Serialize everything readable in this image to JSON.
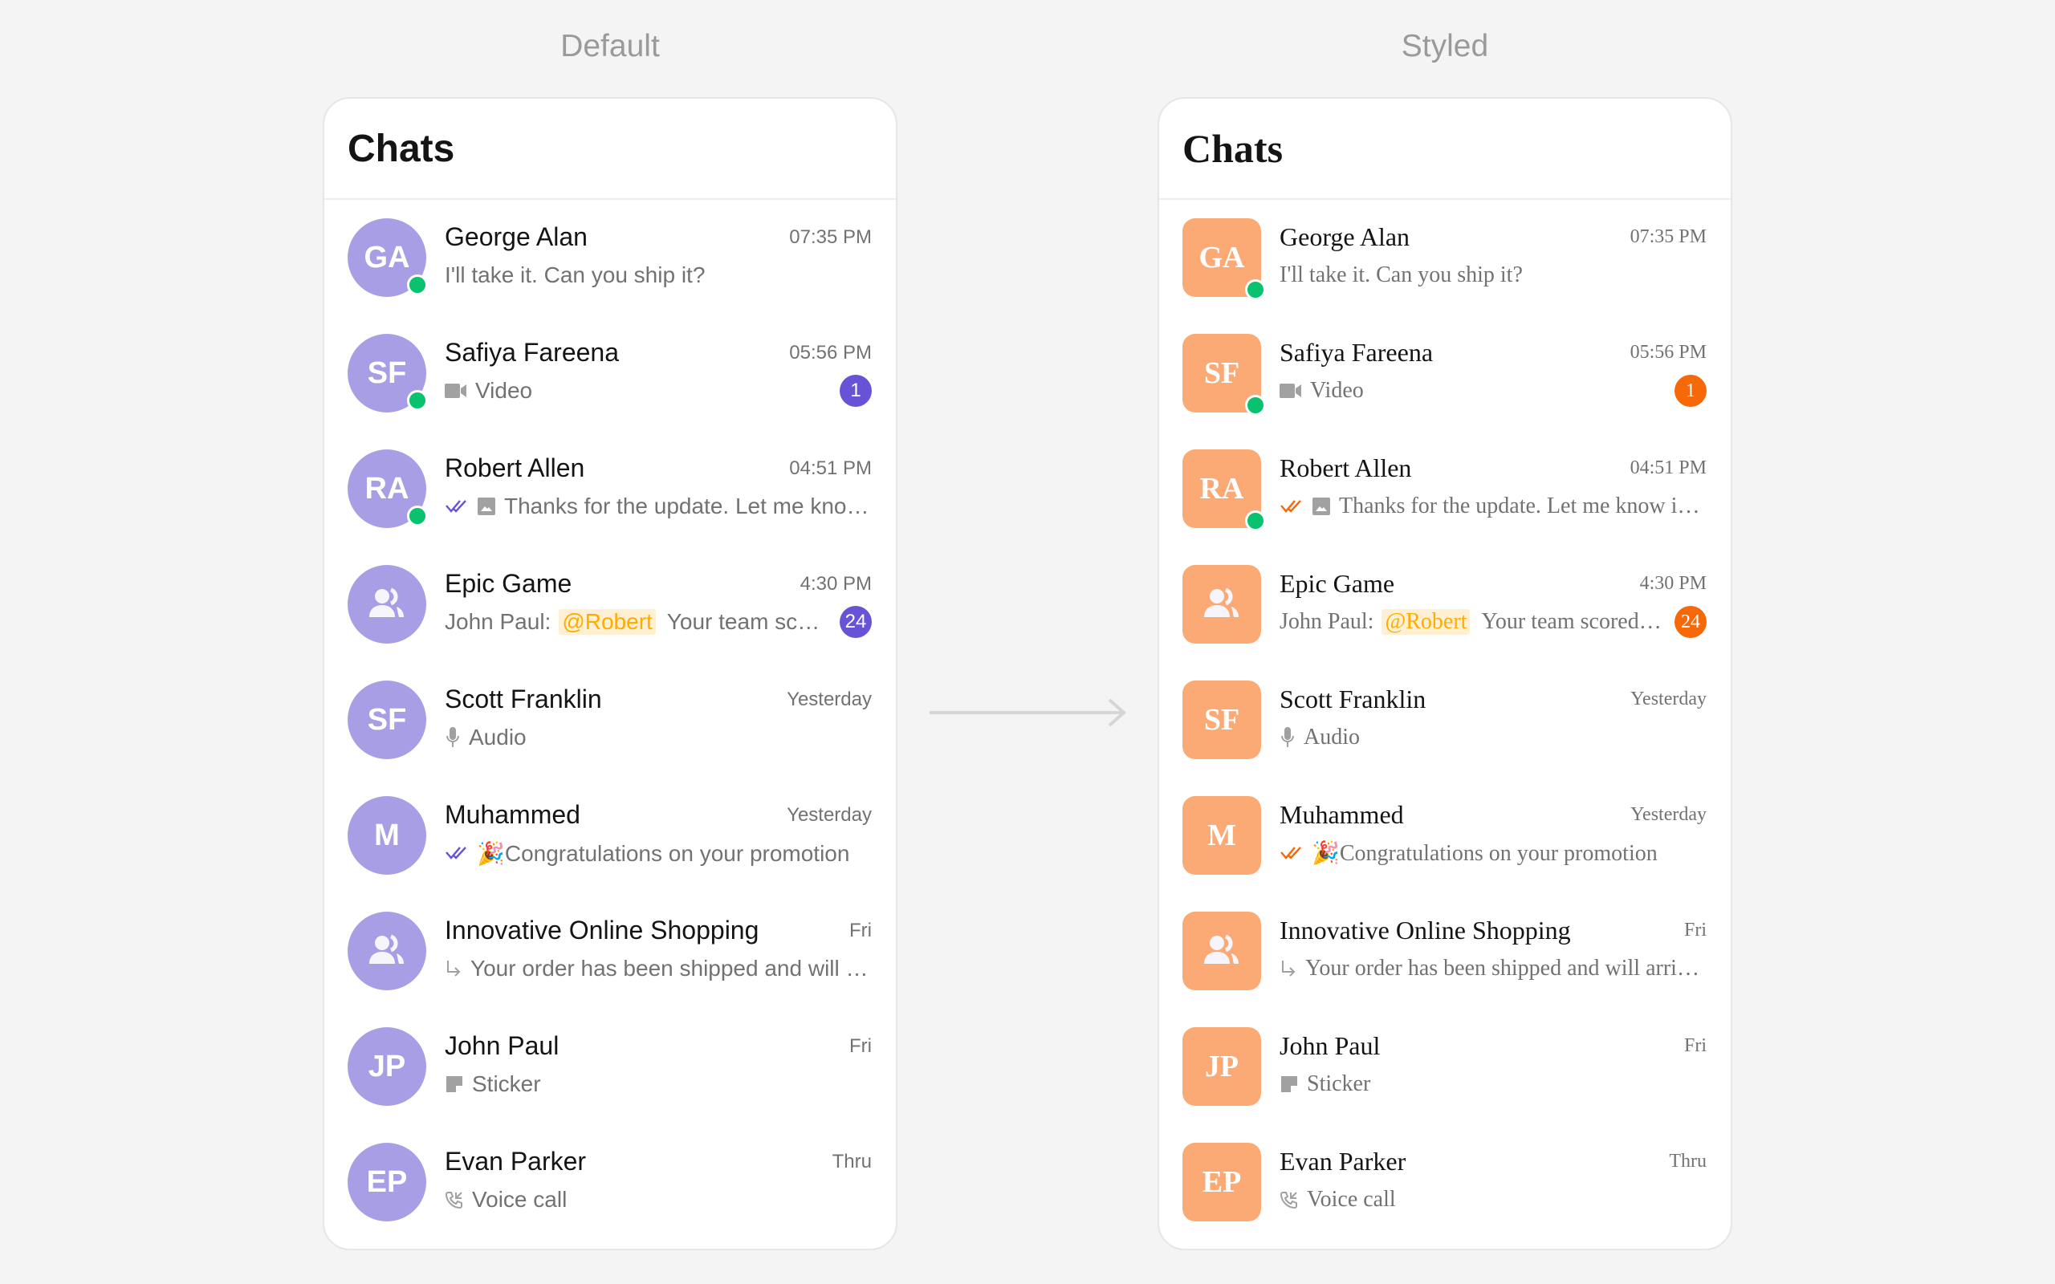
{
  "columns": {
    "default_label": "Default",
    "styled_label": "Styled"
  },
  "panel_title": "Chats",
  "themes": {
    "default": {
      "avatar_color": "#a89ee6",
      "badge_color": "#6852d6",
      "receipt_color": "#6852d6"
    },
    "styled": {
      "avatar_color": "#fbaa75",
      "badge_color": "#f76808",
      "receipt_color": "#f76808"
    }
  },
  "chats": [
    {
      "name": "George Alan",
      "initials": "GA",
      "time": "07:35 PM",
      "online": true,
      "message": "I'll take it. Can you ship it?"
    },
    {
      "name": "Safiya Fareena",
      "initials": "SF",
      "time": "05:56 PM",
      "online": true,
      "type_icon": "video-icon",
      "message": "Video",
      "unread": "1"
    },
    {
      "name": "Robert Allen",
      "initials": "RA",
      "time": "04:51 PM",
      "online": true,
      "receipt": "read",
      "type_icon": "image-icon",
      "message": "Thanks for the update. Let me know if you need anything else"
    },
    {
      "name": "Epic Game",
      "group": true,
      "time": "4:30 PM",
      "sender": "John Paul:",
      "mention": "@Robert",
      "message": "Your team scored a victory in the last match",
      "unread": "24"
    },
    {
      "name": "Scott Franklin",
      "initials": "SF",
      "time": "Yesterday",
      "type_icon": "mic-icon",
      "message": "Audio"
    },
    {
      "name": "Muhammed",
      "initials": "M",
      "time": "Yesterday",
      "receipt": "read",
      "message": "🎉Congratulations on your promotion"
    },
    {
      "name": "Innovative Online Shopping",
      "group": true,
      "time": "Fri",
      "type_icon": "reply-icon",
      "message": "Your order has been shipped and will arrive soon"
    },
    {
      "name": "John Paul",
      "initials": "JP",
      "time": "Fri",
      "type_icon": "sticker-icon",
      "message": "Sticker"
    },
    {
      "name": "Evan Parker",
      "initials": "EP",
      "time": "Thru",
      "type_icon": "call-icon",
      "message": "Voice call"
    }
  ]
}
